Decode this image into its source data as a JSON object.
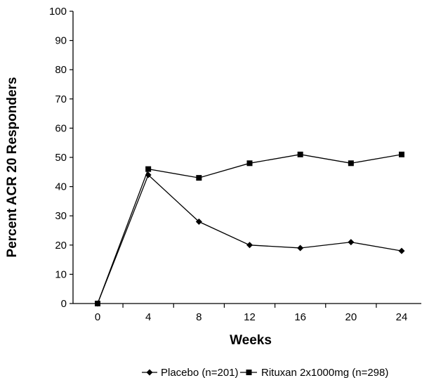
{
  "chart_data": {
    "type": "line",
    "title": "",
    "xlabel": "Weeks",
    "ylabel": "Percent ACR 20 Responders",
    "x": [
      0,
      4,
      8,
      12,
      16,
      20,
      24
    ],
    "xlim": [
      0,
      24
    ],
    "ylim": [
      0,
      100
    ],
    "yticks": [
      0,
      10,
      20,
      30,
      40,
      50,
      60,
      70,
      80,
      90,
      100
    ],
    "grid": false,
    "legend_position": "bottom",
    "series": [
      {
        "name": "Placebo (n=201)",
        "marker": "diamond",
        "color": "#000000",
        "values": [
          0,
          44,
          28,
          20,
          19,
          21,
          18
        ]
      },
      {
        "name": "Rituxan 2x1000mg (n=298)",
        "marker": "square",
        "color": "#000000",
        "values": [
          0,
          46,
          43,
          48,
          51,
          48,
          51
        ]
      }
    ]
  }
}
